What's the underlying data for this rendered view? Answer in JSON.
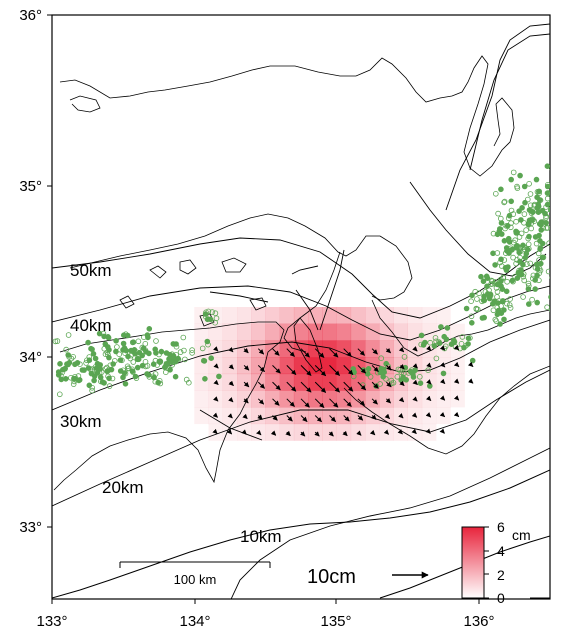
{
  "map": {
    "lon_ticks": [
      "133°",
      "134°",
      "135°",
      "136°"
    ],
    "lat_ticks": [
      "33°",
      "34°",
      "35°",
      "36°"
    ],
    "contour_labels": [
      "50km",
      "40km",
      "30km",
      "20km",
      "10km"
    ],
    "scale_bar": {
      "label": "100 km",
      "length_km": 100
    },
    "reference_vector": {
      "label": "10cm",
      "length_cm": 10
    },
    "colorbar": {
      "unit": "cm",
      "ticks": [
        "0",
        "2",
        "4",
        "6"
      ],
      "min": 0,
      "max": 6,
      "color_low": "#ffffff",
      "color_high": "#e8243c"
    },
    "colors": {
      "seismicity": "#5aa552",
      "coast": "#000000",
      "displacement": "#e8243c"
    },
    "extent": {
      "lon": [
        133,
        136.5
      ],
      "lat": [
        32.5,
        36
      ]
    }
  }
}
